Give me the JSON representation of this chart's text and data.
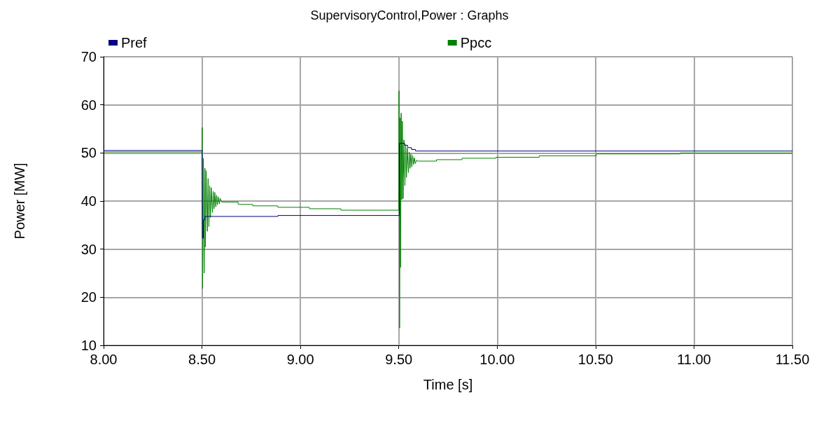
{
  "chart_data": {
    "type": "line",
    "title": "SupervisoryControl,Power : Graphs",
    "xlabel": "Time [s]",
    "ylabel": "Power [MW]",
    "xlim": [
      8,
      11.5
    ],
    "xticks": [
      {
        "value": 8,
        "label": "8.00"
      },
      {
        "value": 8.5,
        "label": "8.50"
      },
      {
        "value": 9,
        "label": "9.00"
      },
      {
        "value": 9.5,
        "label": "9.50"
      },
      {
        "value": 10,
        "label": "10.00"
      },
      {
        "value": 10.5,
        "label": "10.50"
      },
      {
        "value": 11,
        "label": "11.00"
      },
      {
        "value": 11.5,
        "label": "11.50"
      }
    ],
    "ylim": [
      10,
      70
    ],
    "yticks": [
      10,
      20,
      30,
      40,
      50,
      60,
      70
    ],
    "grid": true,
    "legend": "top",
    "marker": "none",
    "line_style": "solid",
    "series": [
      {
        "name": "Pref",
        "type": "step",
        "color": "#000080",
        "x": [
          8,
          8.5,
          8.502,
          8.507,
          8.515,
          8.886,
          9.5,
          9.503,
          9.53,
          9.545,
          9.565,
          9.585,
          11.5
        ],
        "values": [
          50.5,
          50.5,
          32.3,
          36.1,
          36.8,
          37.0,
          37.0,
          52.0,
          51.6,
          51.1,
          50.7,
          50.4,
          50.4
        ]
      },
      {
        "name": "Ppcc",
        "color": "#008000",
        "x": [
          8,
          8.5,
          8.501,
          8.503,
          8.507,
          8.511,
          8.515,
          8.517,
          8.521,
          8.527,
          8.531,
          8.535,
          8.539,
          8.543,
          8.547,
          8.553,
          8.557,
          8.561,
          8.565,
          8.57,
          8.574,
          8.578,
          8.582,
          8.588,
          8.592,
          8.6,
          8.683,
          8.684,
          8.757,
          8.758,
          8.885,
          8.886,
          9.045,
          9.046,
          9.205,
          9.206,
          9.418,
          9.419,
          9.5,
          9.501,
          9.504,
          9.507,
          9.509,
          9.512,
          9.515,
          9.518,
          9.522,
          9.526,
          9.531,
          9.535,
          9.539,
          9.543,
          9.549,
          9.553,
          9.557,
          9.561,
          9.566,
          9.57,
          9.575,
          9.579,
          9.584,
          9.59,
          9.596,
          9.691,
          9.692,
          9.821,
          9.822,
          9.993,
          9.994,
          10.213,
          10.214,
          10.503,
          10.504,
          10.93,
          10.931,
          11.5
        ],
        "values": [
          50.2,
          50.2,
          55.3,
          21.8,
          48.9,
          25.0,
          46.8,
          30.4,
          46.3,
          33.7,
          44.7,
          34.7,
          43.2,
          36.6,
          42.8,
          37.6,
          42.0,
          38.4,
          41.8,
          38.8,
          41.2,
          39.2,
          40.9,
          39.4,
          40.6,
          39.8,
          39.8,
          39.3,
          39.3,
          39.0,
          39.0,
          38.7,
          38.7,
          38.4,
          38.4,
          38.1,
          38.1,
          38.1,
          38.1,
          62.9,
          13.6,
          57.3,
          26.2,
          58.3,
          40.3,
          56.6,
          40.5,
          52.7,
          43.2,
          51.7,
          44.9,
          51.0,
          45.9,
          50.2,
          46.8,
          49.8,
          47.1,
          49.5,
          47.6,
          49.0,
          47.8,
          48.5,
          48.3,
          48.3,
          48.6,
          48.6,
          48.9,
          48.9,
          49.1,
          49.1,
          49.4,
          49.4,
          49.8,
          49.8,
          50.0,
          50.0
        ]
      }
    ]
  }
}
